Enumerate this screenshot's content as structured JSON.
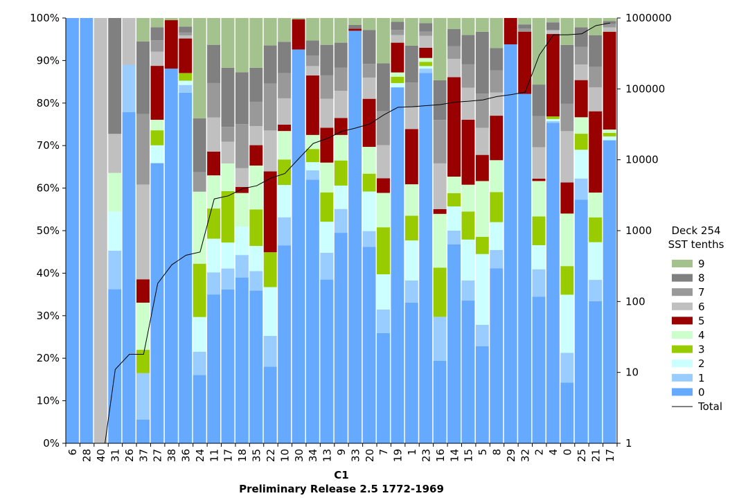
{
  "chart_data": {
    "type": "bar",
    "stacked": true,
    "normalized": true,
    "xlabel": "C1",
    "subtitle": "Preliminary Release 2.5 1772-1969",
    "categories": [
      "6",
      "28",
      "40",
      "31",
      "26",
      "37",
      "27",
      "38",
      "36",
      "24",
      "11",
      "17",
      "18",
      "35",
      "22",
      "10",
      "30",
      "34",
      "13",
      "9",
      "33",
      "20",
      "7",
      "19",
      "1",
      "23",
      "16",
      "14",
      "15",
      "5",
      "8",
      "29",
      "32",
      "2",
      "4",
      "0",
      "25",
      "21",
      "17"
    ],
    "left_axis": {
      "ylim": [
        0,
        100
      ],
      "ticks": [
        "0%",
        "10%",
        "20%",
        "30%",
        "40%",
        "50%",
        "60%",
        "70%",
        "80%",
        "90%",
        "100%"
      ]
    },
    "right_axis": {
      "scale": "log",
      "ylim": [
        1,
        1000000
      ],
      "ticks": [
        "1",
        "10",
        "100",
        "1000",
        "10000",
        "100000",
        "1000000"
      ]
    },
    "legend": {
      "title_lines": [
        "Deck 254",
        "SST tenths"
      ],
      "position": "right",
      "entries": [
        "9",
        "8",
        "7",
        "6",
        "5",
        "4",
        "3",
        "2",
        "1",
        "0"
      ],
      "total_label": "Total"
    },
    "series": [
      {
        "name": "0",
        "color": "#66aaff",
        "values": [
          100,
          100,
          0,
          36.3,
          77.9,
          5.6,
          69.1,
          88.1,
          82.2,
          15.0,
          35.0,
          36.2,
          36.1,
          35.9,
          16.5,
          46.6,
          92.6,
          62.0,
          38.5,
          49.5,
          97.0,
          46.2,
          26.3,
          83.7,
          33.1,
          87.1,
          17.5,
          46.8,
          33.6,
          22.6,
          40.1,
          93.8,
          82.0,
          37.2,
          74.2,
          14.2,
          57.7,
          33.2,
          70.9
        ]
      },
      {
        "name": "1",
        "color": "#99ccff",
        "values": [
          0,
          0,
          0,
          9.1,
          11.1,
          10.9,
          0,
          0,
          1.8,
          5.1,
          5.2,
          4.9,
          4.9,
          4.6,
          6.6,
          6.6,
          0,
          2.2,
          6.3,
          5.6,
          0,
          3.7,
          5.6,
          0,
          5.2,
          1.0,
          9.3,
          3.2,
          4.7,
          5.0,
          4.2,
          0,
          0,
          7.0,
          0.4,
          7.0,
          5.0,
          5.0,
          0
        ]
      },
      {
        "name": "2",
        "color": "#ccffff",
        "values": [
          0,
          0,
          0,
          9.2,
          0,
          0,
          4.4,
          0,
          1.0,
          7.6,
          7.9,
          6.1,
          6.2,
          5.9,
          10.5,
          7.6,
          0,
          1.9,
          7.3,
          5.5,
          0,
          9.3,
          8.4,
          1.0,
          9.4,
          0.6,
          0,
          5.7,
          9.6,
          16.5,
          6.4,
          0,
          0,
          6.1,
          0.5,
          13.6,
          6.8,
          8.8,
          0.9
        ]
      },
      {
        "name": "3",
        "color": "#99cc00",
        "values": [
          0,
          0,
          0,
          0,
          0,
          5.5,
          3.7,
          0,
          1.8,
          11.7,
          7.1,
          12.1,
          0,
          8.6,
          7.5,
          6.0,
          0,
          3.1,
          6.9,
          5.9,
          0,
          4.2,
          11.2,
          1.5,
          5.8,
          1.0,
          10.4,
          3.1,
          6.6,
          4.0,
          6.9,
          0,
          0,
          7.3,
          0.6,
          6.7,
          3.8,
          5.8,
          0.8
        ]
      },
      {
        "name": "4",
        "color": "#ccffcc",
        "values": [
          0,
          0,
          0,
          9.1,
          0,
          11.1,
          2.6,
          0,
          0,
          15.8,
          7.8,
          6.5,
          7.3,
          10.3,
          0,
          6.7,
          0,
          3.3,
          7.0,
          6.0,
          0,
          6.3,
          8.2,
          1.0,
          7.4,
          0.9,
          11.4,
          3.9,
          6.3,
          13.0,
          7.3,
          0,
          0,
          9.0,
          0,
          12.3,
          3.9,
          5.8,
          0.8
        ]
      },
      {
        "name": "5",
        "color": "#990000",
        "values": [
          0,
          0,
          0,
          0,
          0,
          5.5,
          13.3,
          11.4,
          8.1,
          0,
          5.6,
          0,
          1.3,
          4.8,
          17.4,
          1.5,
          7.1,
          14.0,
          8.2,
          4.0,
          0.5,
          11.3,
          3.5,
          7.0,
          13.0,
          2.4,
          1.0,
          23.4,
          15.3,
          6.1,
          10.2,
          6.2,
          14.6,
          0.6,
          19.1,
          7.3,
          8.8,
          19.0,
          22.9
        ]
      },
      {
        "name": "6",
        "color": "#c0c0c0",
        "values": [
          0,
          0,
          100,
          9.2,
          11.0,
          22.3,
          3.5,
          0,
          0.7,
          0,
          8.0,
          5.1,
          4.1,
          4.5,
          8.8,
          6.2,
          0,
          2.2,
          6.8,
          6.4,
          0,
          5.0,
          7.9,
          1.8,
          5.1,
          2.8,
          9.7,
          4.3,
          7.5,
          6.3,
          5.3,
          0,
          0,
          8.0,
          0.9,
          12.0,
          3.7,
          5.6,
          1.0
        ]
      },
      {
        "name": "7",
        "color": "#999999",
        "values": [
          0,
          0,
          0,
          0,
          0,
          16.6,
          2.8,
          0,
          0.7,
          4.3,
          8.1,
          3.5,
          9.6,
          5.7,
          10.1,
          5.9,
          0,
          2.5,
          5.5,
          5.4,
          0,
          3.2,
          8.1,
          1.2,
          5.8,
          1.0,
          9.2,
          3.0,
          5.5,
          8.0,
          5.1,
          0,
          0.7,
          7.9,
          0,
          6.4,
          4.2,
          4.8,
          0.8
        ]
      },
      {
        "name": "8",
        "color": "#808080",
        "values": [
          0,
          0,
          0,
          27.3,
          0,
          17.1,
          3.2,
          0,
          1.4,
          11.8,
          9.0,
          13.9,
          11.3,
          8.0,
          8.2,
          7.4,
          0,
          3.5,
          7.2,
          5.9,
          0.9,
          8.0,
          11.4,
          1.9,
          8.7,
          2.0,
          8.4,
          4.0,
          6.9,
          14.4,
          5.1,
          0,
          1.0,
          8.0,
          1.8,
          13.8,
          4.6,
          7.4,
          0.7
        ]
      },
      {
        "name": "9",
        "color": "#a3c28d",
        "values": [
          0,
          0,
          0,
          0,
          0,
          5.5,
          2.3,
          0.5,
          2.0,
          22.0,
          6.3,
          11.7,
          11.8,
          11.7,
          5.9,
          5.6,
          0.3,
          5.3,
          6.3,
          5.8,
          1.6,
          2.8,
          10.8,
          0.9,
          6.5,
          1.2,
          13.2,
          2.6,
          4.0,
          3.2,
          6.9,
          0,
          1.5,
          16.9,
          1.0,
          6.3,
          2.2,
          4.0,
          0.7
        ]
      }
    ],
    "total": {
      "name": "Total",
      "color": "#000000",
      "values": [
        0.0001,
        0.0001,
        0.0001,
        11,
        18,
        18,
        180,
        330,
        450,
        500,
        2800,
        3100,
        3900,
        4300,
        5500,
        6400,
        10500,
        17000,
        20000,
        25000,
        28000,
        32000,
        43000,
        55000,
        56000,
        58000,
        60000,
        65000,
        67000,
        70000,
        78000,
        83000,
        90000,
        300000,
        580000,
        580000,
        600000,
        780000,
        850000
      ]
    }
  }
}
